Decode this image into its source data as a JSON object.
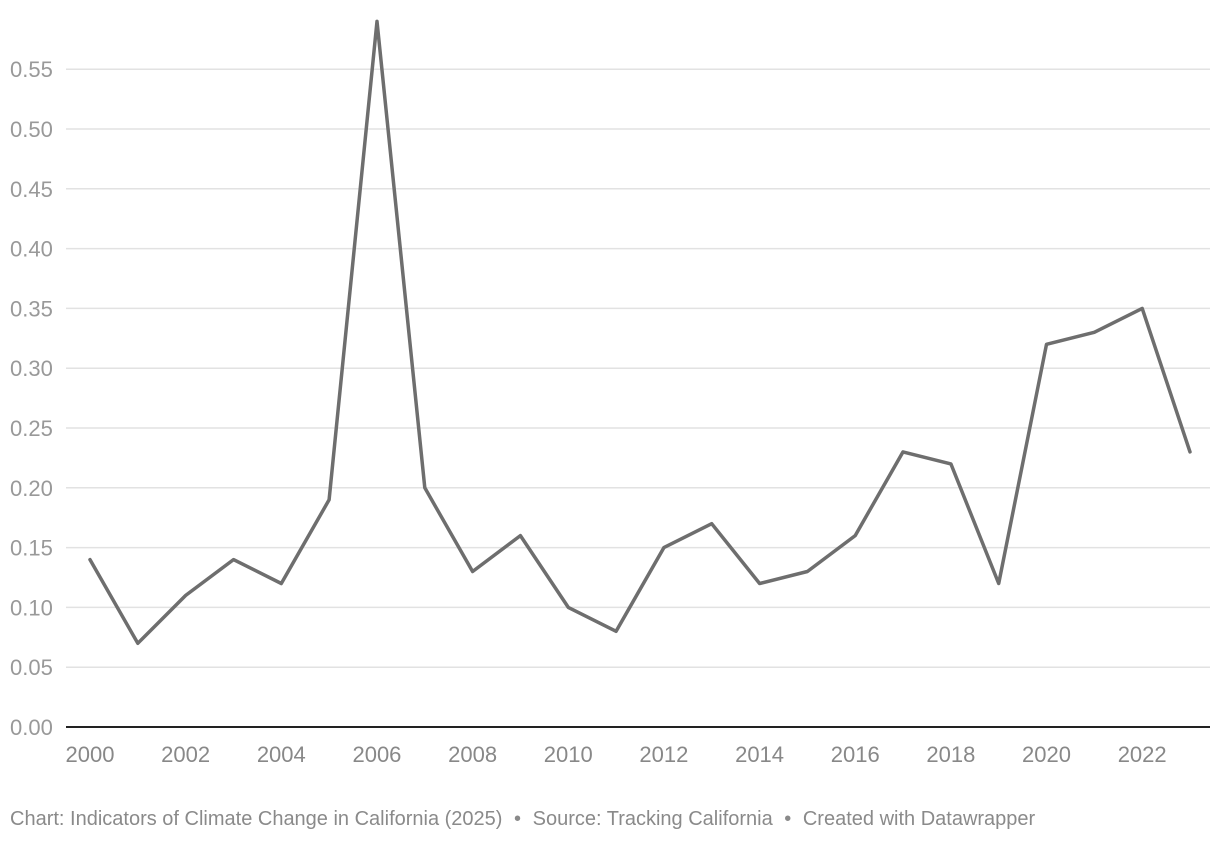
{
  "chart_data": {
    "type": "line",
    "title": "",
    "xlabel": "",
    "ylabel": "",
    "ylim": [
      0,
      0.55
    ],
    "xlim": [
      2000,
      2023
    ],
    "yticks": [
      "0.00",
      "0.05",
      "0.10",
      "0.15",
      "0.20",
      "0.25",
      "0.30",
      "0.35",
      "0.40",
      "0.45",
      "0.50",
      "0.55"
    ],
    "xticks": [
      "2000",
      "2002",
      "2004",
      "2006",
      "2008",
      "2010",
      "2012",
      "2014",
      "2016",
      "2018",
      "2020",
      "2022"
    ],
    "grid": true,
    "x": [
      2000,
      2001,
      2002,
      2003,
      2004,
      2005,
      2006,
      2007,
      2008,
      2009,
      2010,
      2011,
      2012,
      2013,
      2014,
      2015,
      2016,
      2017,
      2018,
      2019,
      2020,
      2021,
      2022,
      2023
    ],
    "series": [
      {
        "values": [
          0.14,
          0.07,
          0.11,
          0.14,
          0.12,
          0.19,
          0.59,
          0.2,
          0.13,
          0.16,
          0.1,
          0.08,
          0.15,
          0.17,
          0.12,
          0.13,
          0.16,
          0.23,
          0.22,
          0.12,
          0.32,
          0.33,
          0.35,
          0.23
        ],
        "color": "#6e6e6e"
      }
    ]
  },
  "footer": {
    "chart_credit": "Chart: Indicators of Climate Change in California (2025)",
    "separator": "•",
    "source": "Source: Tracking California",
    "created_with": "Created with Datawrapper"
  }
}
